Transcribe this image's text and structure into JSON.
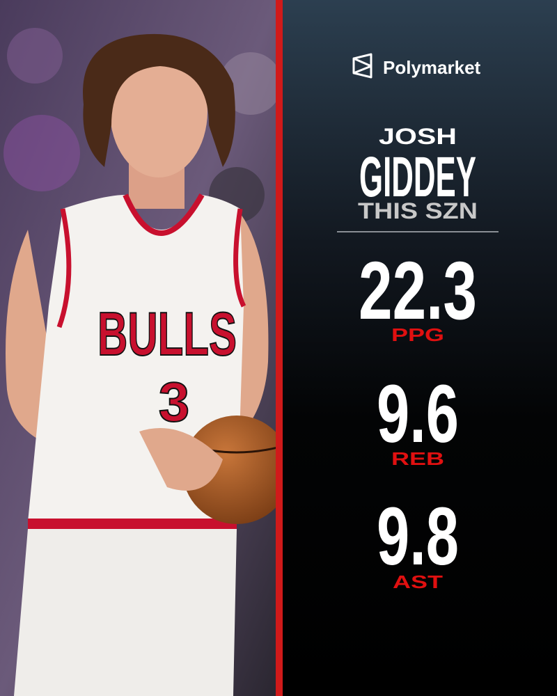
{
  "brand": "Polymarket",
  "player": {
    "first_name": "JOSH",
    "last_name": "GIDDEY",
    "subtitle": "THIS SZN"
  },
  "photo": {
    "jersey_text": "BULLS",
    "jersey_number": 3
  },
  "stats": [
    {
      "value": 22.3,
      "label": "PPG"
    },
    {
      "value": 9.6,
      "label": "REB"
    },
    {
      "value": 9.8,
      "label": "AST"
    }
  ]
}
